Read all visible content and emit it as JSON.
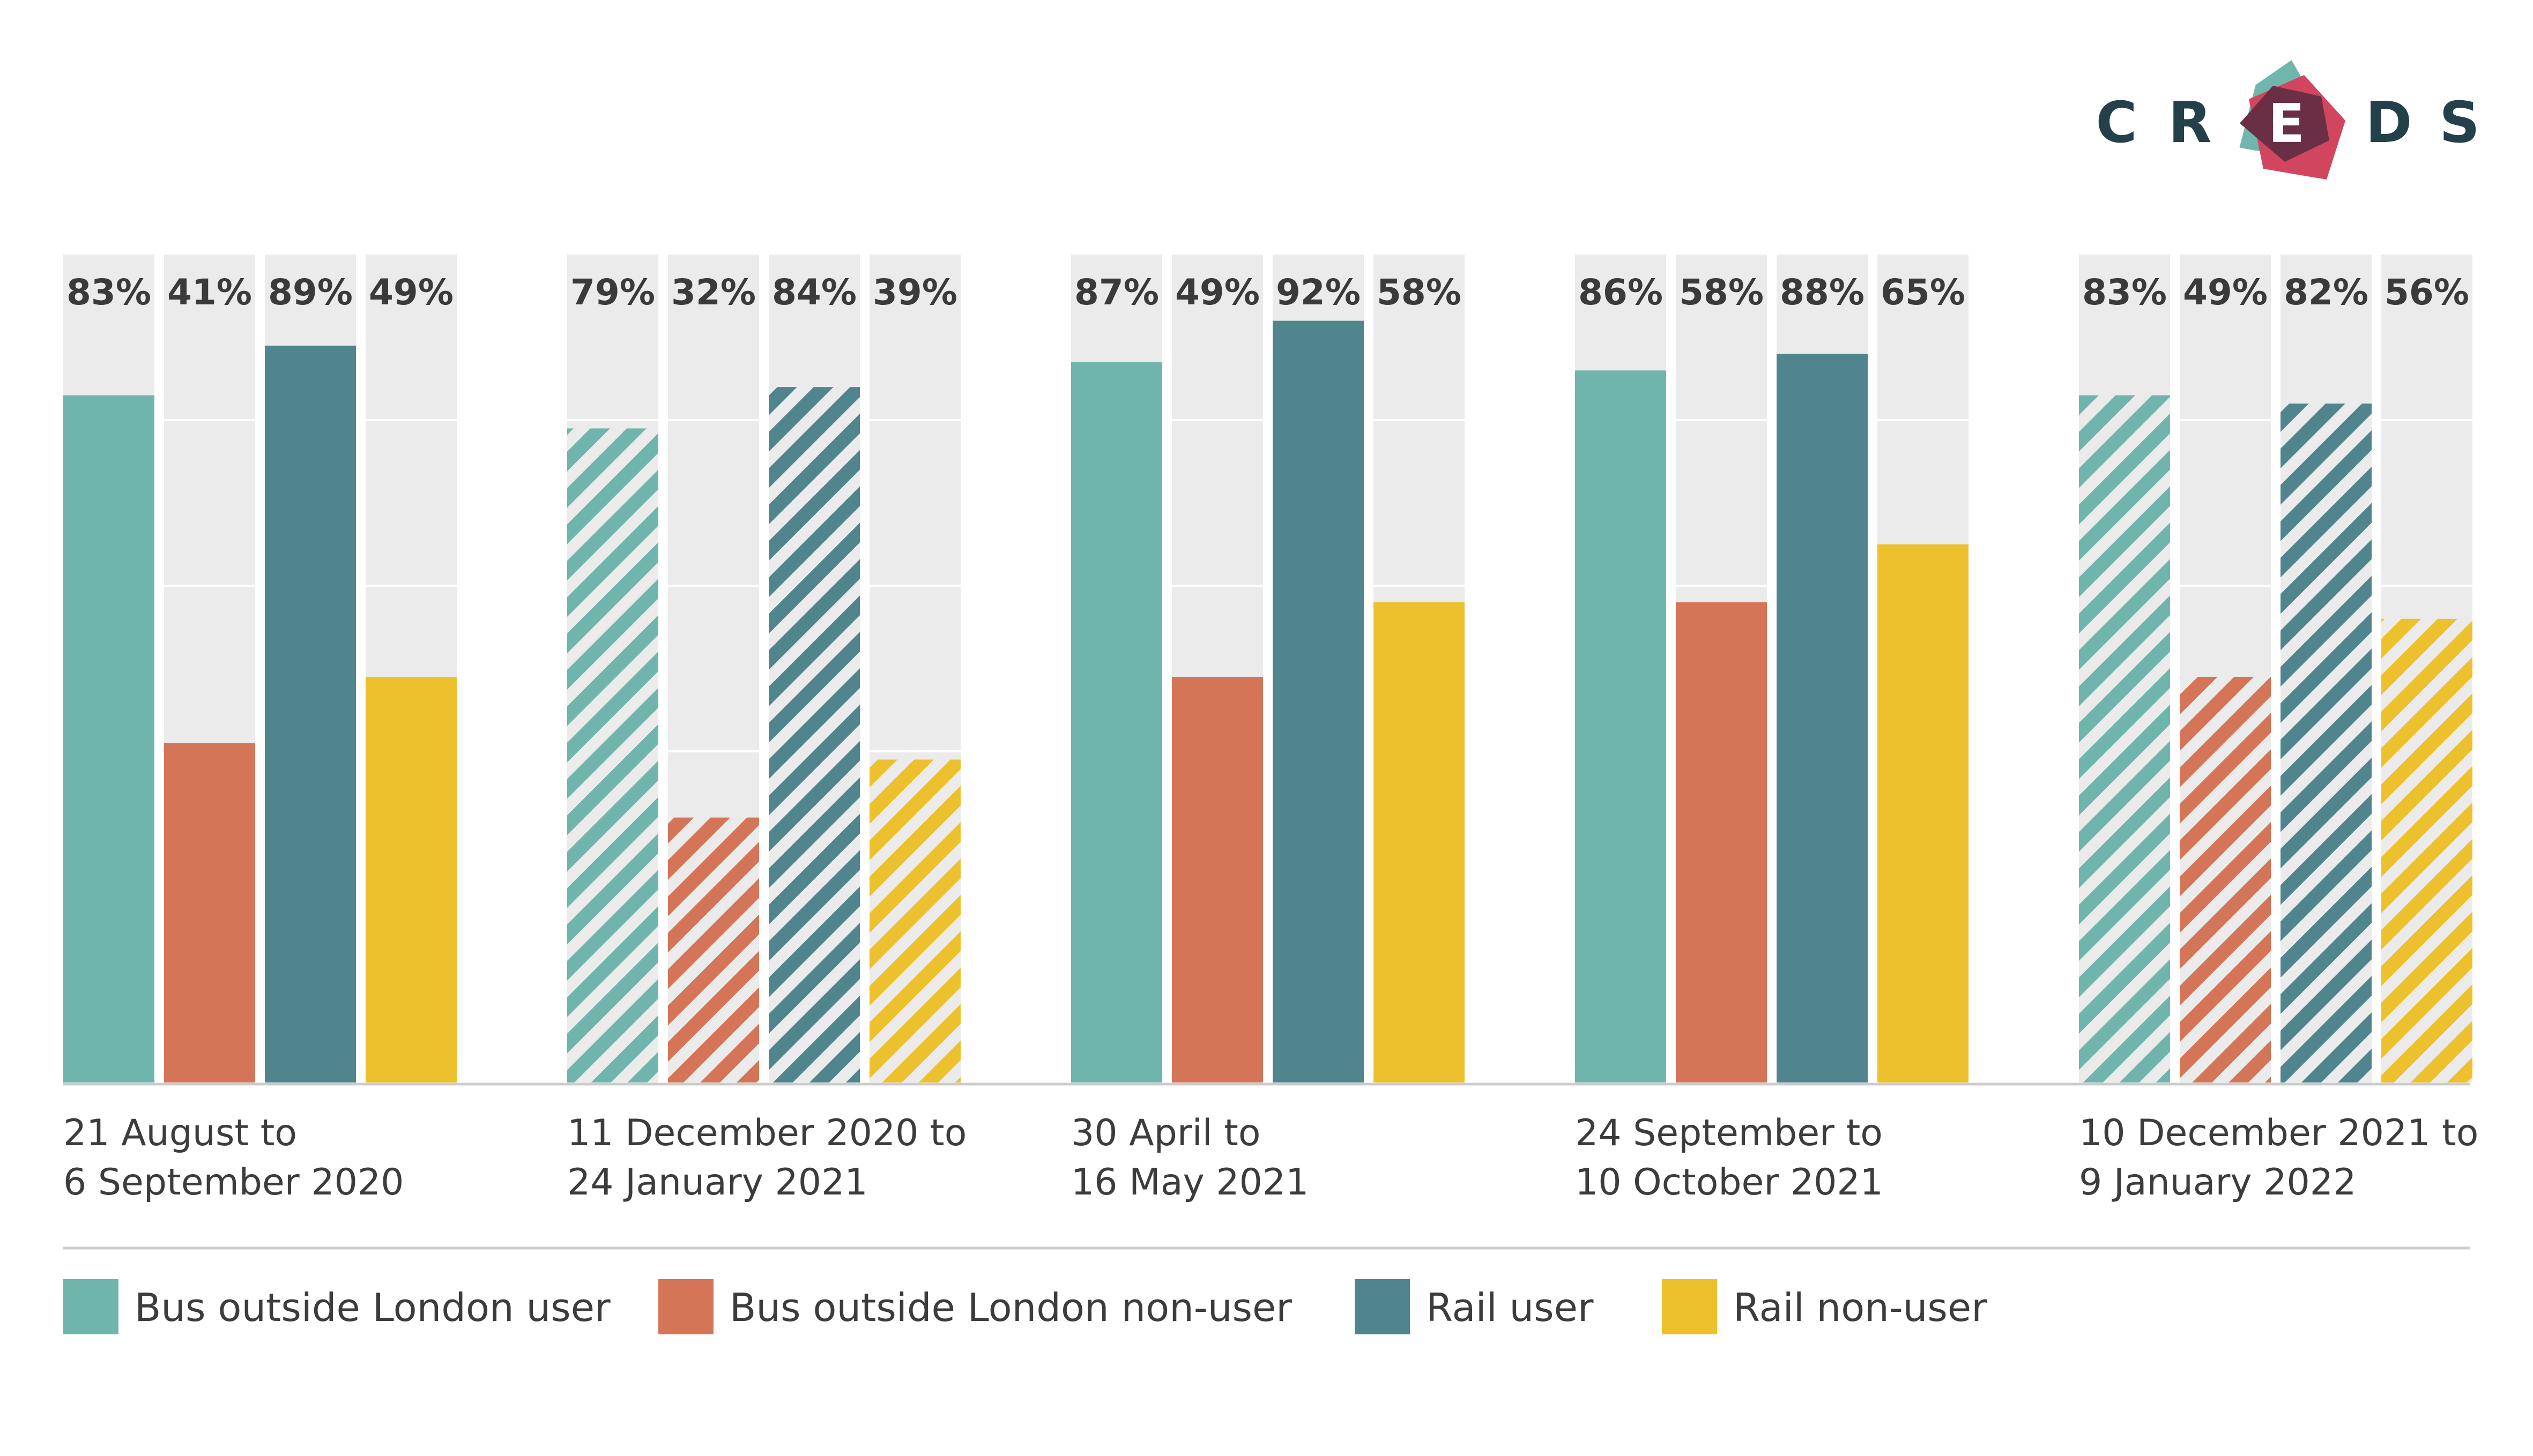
{
  "logo": {
    "letters": [
      "C",
      "R",
      "E",
      "D",
      "S"
    ],
    "colors": {
      "text": "#24404a",
      "shape_teal": "#71b6ac",
      "shape_red": "#d2455e",
      "shape_dark": "#6b2f45"
    }
  },
  "colors": {
    "bus_user": "#70b5ab",
    "bus_non_user": "#d47557",
    "rail_user": "#51858e",
    "rail_non_user": "#edc12e",
    "panel_background": "#ebebeb",
    "divider": "#cccccc"
  },
  "chart_data": {
    "type": "bar",
    "unit": "%",
    "ylim": [
      0,
      100
    ],
    "grid": true,
    "legend_position": "bottom",
    "categories": [
      [
        "21 August to",
        "6 September 2020"
      ],
      [
        "11 December 2020 to",
        "24 January 2021"
      ],
      [
        "30 April to",
        "16 May 2021"
      ],
      [
        "24 September to",
        "10 October 2021"
      ],
      [
        "10 December 2021 to",
        "9 January 2022"
      ]
    ],
    "hatched_periods": [
      false,
      true,
      false,
      false,
      true
    ],
    "series": [
      {
        "name": "Bus outside London user",
        "color_key": "bus_user",
        "values": [
          83,
          79,
          87,
          86,
          83
        ]
      },
      {
        "name": "Bus outside London non-user",
        "color_key": "bus_non_user",
        "values": [
          41,
          32,
          49,
          58,
          49
        ]
      },
      {
        "name": "Rail user",
        "color_key": "rail_user",
        "values": [
          89,
          84,
          92,
          88,
          82
        ]
      },
      {
        "name": "Rail non-user",
        "color_key": "rail_non_user",
        "values": [
          49,
          39,
          58,
          65,
          56
        ]
      }
    ]
  }
}
